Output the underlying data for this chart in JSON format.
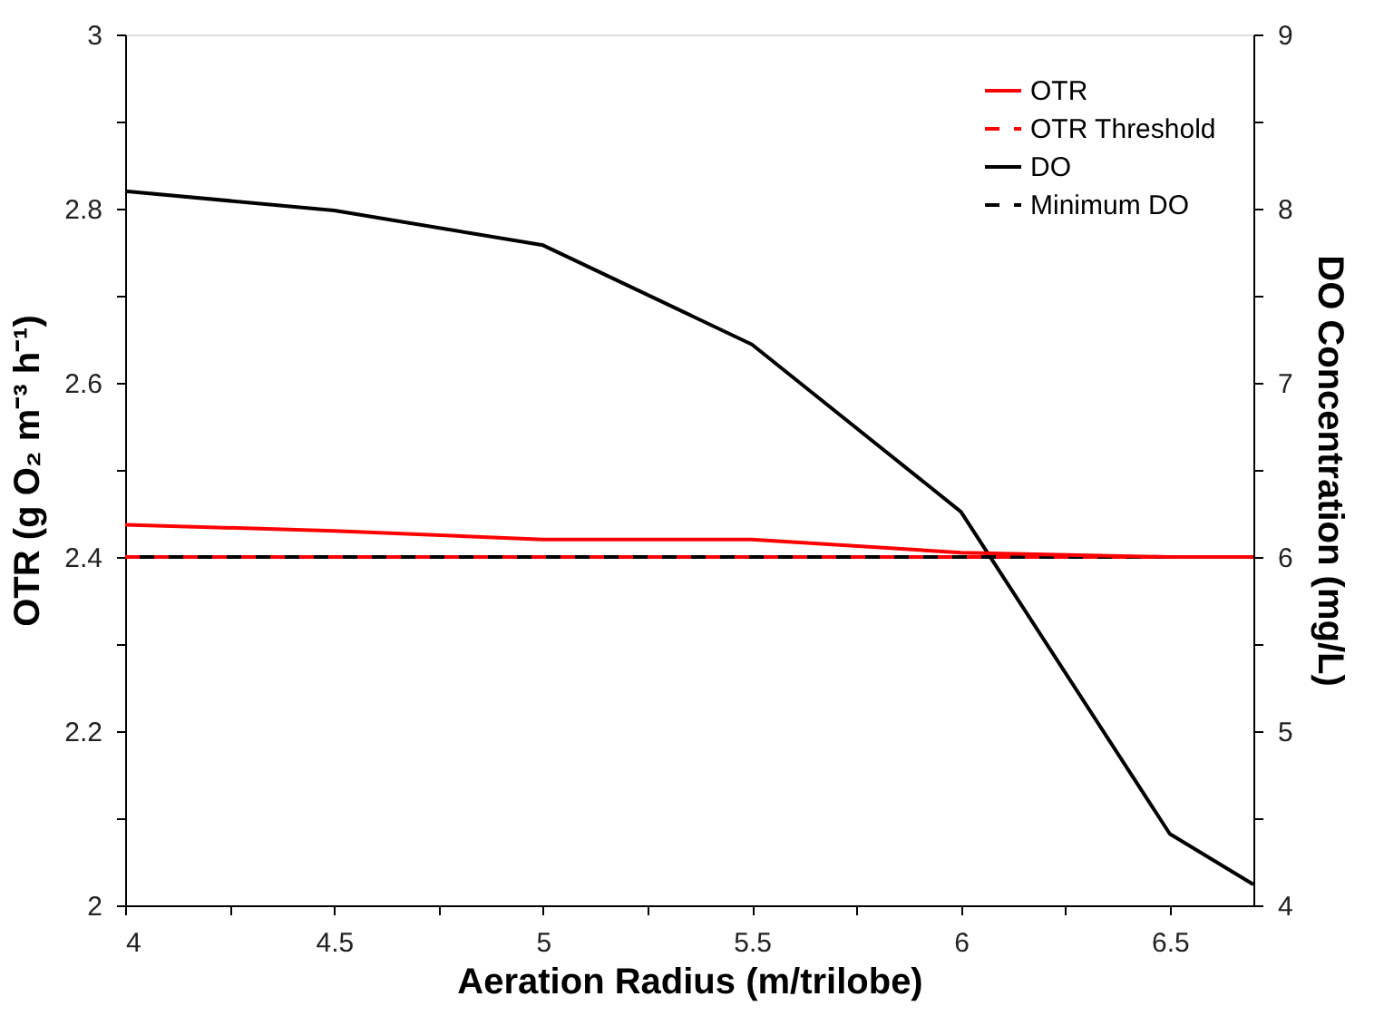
{
  "chart_data": {
    "type": "line",
    "xlabel": "Aeration Radius (m/trilobe)",
    "ylabel": "OTR (g O₂ m⁻³ h⁻¹)",
    "y2label": "DO Concentration (mg/L)",
    "xlim": [
      4,
      6.7
    ],
    "xticks": [
      4,
      {
        "value": 4.25,
        "label": null
      },
      4.5,
      {
        "value": 4.75,
        "label": null
      },
      5,
      {
        "value": 5.25,
        "label": null
      },
      5.5,
      {
        "value": 5.75,
        "label": null
      },
      6,
      {
        "value": 6.25,
        "label": null
      },
      6.5
    ],
    "ylim": [
      2,
      3
    ],
    "yticks": [
      2,
      {
        "value": 2.1,
        "label": null
      },
      2.2,
      {
        "value": 2.3,
        "label": null
      },
      2.4,
      {
        "value": 2.5,
        "label": null
      },
      2.6,
      {
        "value": 2.7,
        "label": null
      },
      2.8,
      {
        "value": 2.9,
        "label": null
      },
      3
    ],
    "y2lim": [
      4,
      9
    ],
    "y2ticks": [
      4,
      {
        "value": 4.5,
        "label": null
      },
      5,
      {
        "value": 5.5,
        "label": null
      },
      6,
      {
        "value": 6.5,
        "label": null
      },
      7,
      {
        "value": 7.5,
        "label": null
      },
      8,
      {
        "value": 8.5,
        "label": null
      },
      9
    ],
    "grid": false,
    "legend": "top right",
    "marker": "none",
    "series": [
      {
        "name": "OTR",
        "color": "#ff0000",
        "line_style": "solid",
        "x": [
          4,
          4.5,
          5,
          5.5,
          6,
          6.5,
          6.7
        ],
        "values": [
          2.437,
          2.43,
          2.42,
          2.42,
          2.405,
          2.4,
          2.4
        ]
      },
      {
        "name": "OTR Threshold",
        "color": "#ff0000",
        "line_style": "dashed",
        "x": [
          4,
          6.7
        ],
        "values": [
          2.4,
          2.4
        ]
      },
      {
        "name": "DO",
        "color": "#000000",
        "line_style": "solid",
        "axis": "y2",
        "x": [
          4,
          4.5,
          5,
          5.5,
          6,
          6.5,
          6.7
        ],
        "values": [
          8.1,
          7.99,
          7.79,
          7.22,
          6.26,
          4.41,
          4.12
        ]
      },
      {
        "name": "Minimum DO",
        "color": "#000000",
        "line_style": "dashed",
        "axis": "y2",
        "x": [
          4,
          6.7
        ],
        "values": [
          6,
          6
        ]
      }
    ]
  }
}
